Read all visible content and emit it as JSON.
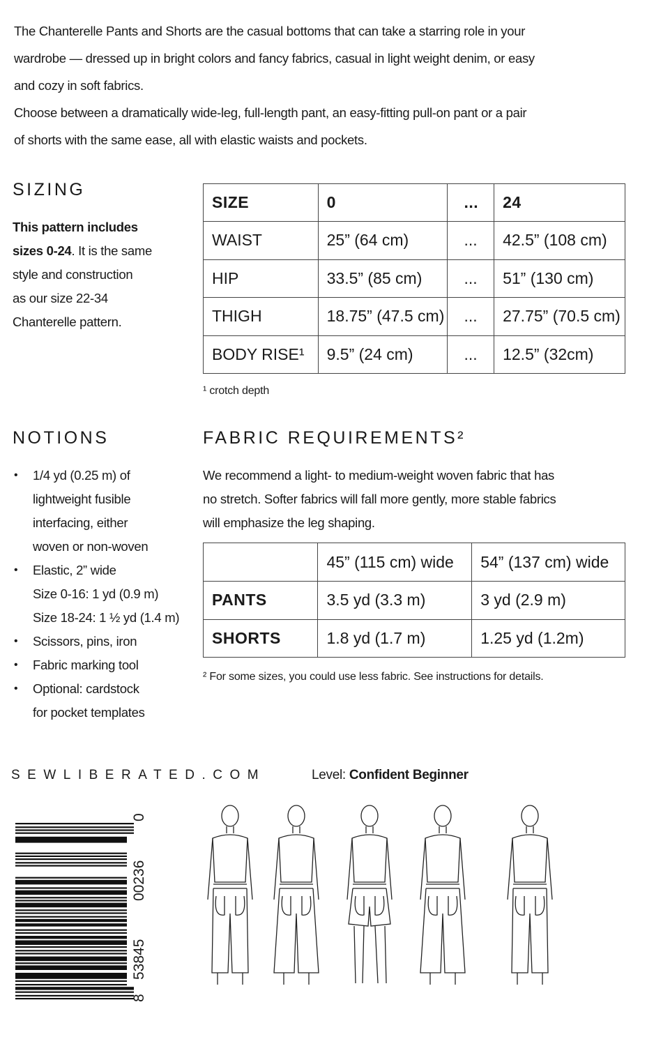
{
  "intro": [
    "The Chanterelle Pants and Shorts are the casual bottoms that can take a starring role in your",
    "wardrobe — dressed up in bright colors and fancy fabrics, casual in light weight denim, or easy",
    "and cozy in soft fabrics.",
    "Choose between  a dramatically wide-leg, full-length pant, an easy-fitting pull-on pant or a pair",
    "of shorts with the same ease,  all with elastic waists and pockets."
  ],
  "sizing": {
    "heading": "SIZING",
    "desc": [
      {
        "bold": "This pattern includes",
        "rest": ""
      },
      {
        "bold": "sizes 0-24",
        "rest": ". It is the same"
      },
      {
        "bold": "",
        "rest": "style and construction"
      },
      {
        "bold": "",
        "rest": "as our size 22-34"
      },
      {
        "bold": "",
        "rest": "Chanterelle pattern."
      }
    ],
    "table": {
      "header": [
        "SIZE",
        "0",
        "...",
        "24"
      ],
      "rows": [
        [
          "WAIST",
          "25” (64 cm)",
          "...",
          "42.5” (108 cm)"
        ],
        [
          "HIP",
          "33.5” (85 cm)",
          "...",
          "51” (130 cm)"
        ],
        [
          "THIGH",
          "18.75” (47.5 cm)",
          "...",
          "27.75” (70.5 cm)"
        ],
        [
          "BODY RISE¹",
          "9.5” (24 cm)",
          "...",
          "12.5” (32cm)"
        ]
      ]
    },
    "footnote": "¹ crotch depth"
  },
  "notions": {
    "heading": "NOTIONS",
    "bullet": "•",
    "lines": [
      {
        "b": true,
        "t": "1/4 yd (0.25 m) of"
      },
      {
        "b": false,
        "t": "lightweight fusible"
      },
      {
        "b": false,
        "t": "interfacing, either"
      },
      {
        "b": false,
        "t": "woven or non-woven"
      },
      {
        "b": true,
        "t": "Elastic, 2” wide"
      },
      {
        "b": false,
        "t": "Size 0-16: 1 yd (0.9 m)"
      },
      {
        "b": false,
        "t": "Size 18-24: 1 ½ yd (1.4 m)"
      },
      {
        "b": true,
        "t": "Scissors, pins, iron"
      },
      {
        "b": true,
        "t": "Fabric marking tool"
      },
      {
        "b": true,
        "t": "Optional: cardstock"
      },
      {
        "b": false,
        "t": "for pocket templates"
      }
    ]
  },
  "fabric": {
    "heading": "FABRIC  REQUIREMENTS²",
    "desc": [
      "We recommend a light- to medium-weight woven fabric that has",
      "no stretch. Softer fabrics will fall more gently, more stable fabrics",
      "will emphasize the leg shaping."
    ],
    "table": {
      "header": [
        "",
        "45” (115 cm) wide",
        "54” (137 cm) wide"
      ],
      "rows": [
        [
          "PANTS",
          "3.5 yd (3.3 m)",
          "3 yd (2.9 m)"
        ],
        [
          "SHORTS",
          "1.8 yd (1.7 m)",
          "1.25 yd (1.2m)"
        ]
      ]
    },
    "footnote": "² For some sizes, you could use less fabric. See instructions for details."
  },
  "footer": {
    "website": "SEWLIBERATED.COM",
    "level_label": "Level: ",
    "level_value": "Confident Beginner",
    "barcode_digits": [
      "8",
      "53845",
      "00236",
      "0"
    ]
  }
}
